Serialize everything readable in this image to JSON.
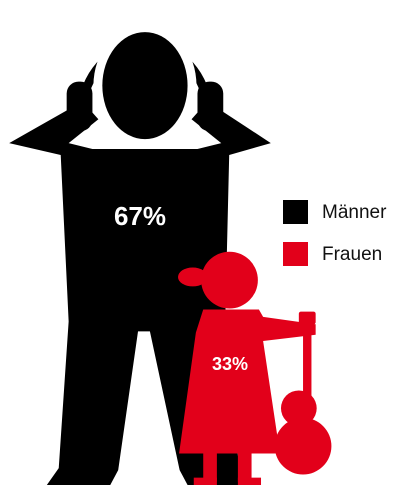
{
  "chart_data": {
    "type": "pictogram",
    "categories": [
      "Männer",
      "Frauen"
    ],
    "values": [
      67,
      33
    ],
    "value_labels": [
      "67%",
      "33%"
    ],
    "colors": [
      "#000000",
      "#e2001a"
    ]
  }
}
